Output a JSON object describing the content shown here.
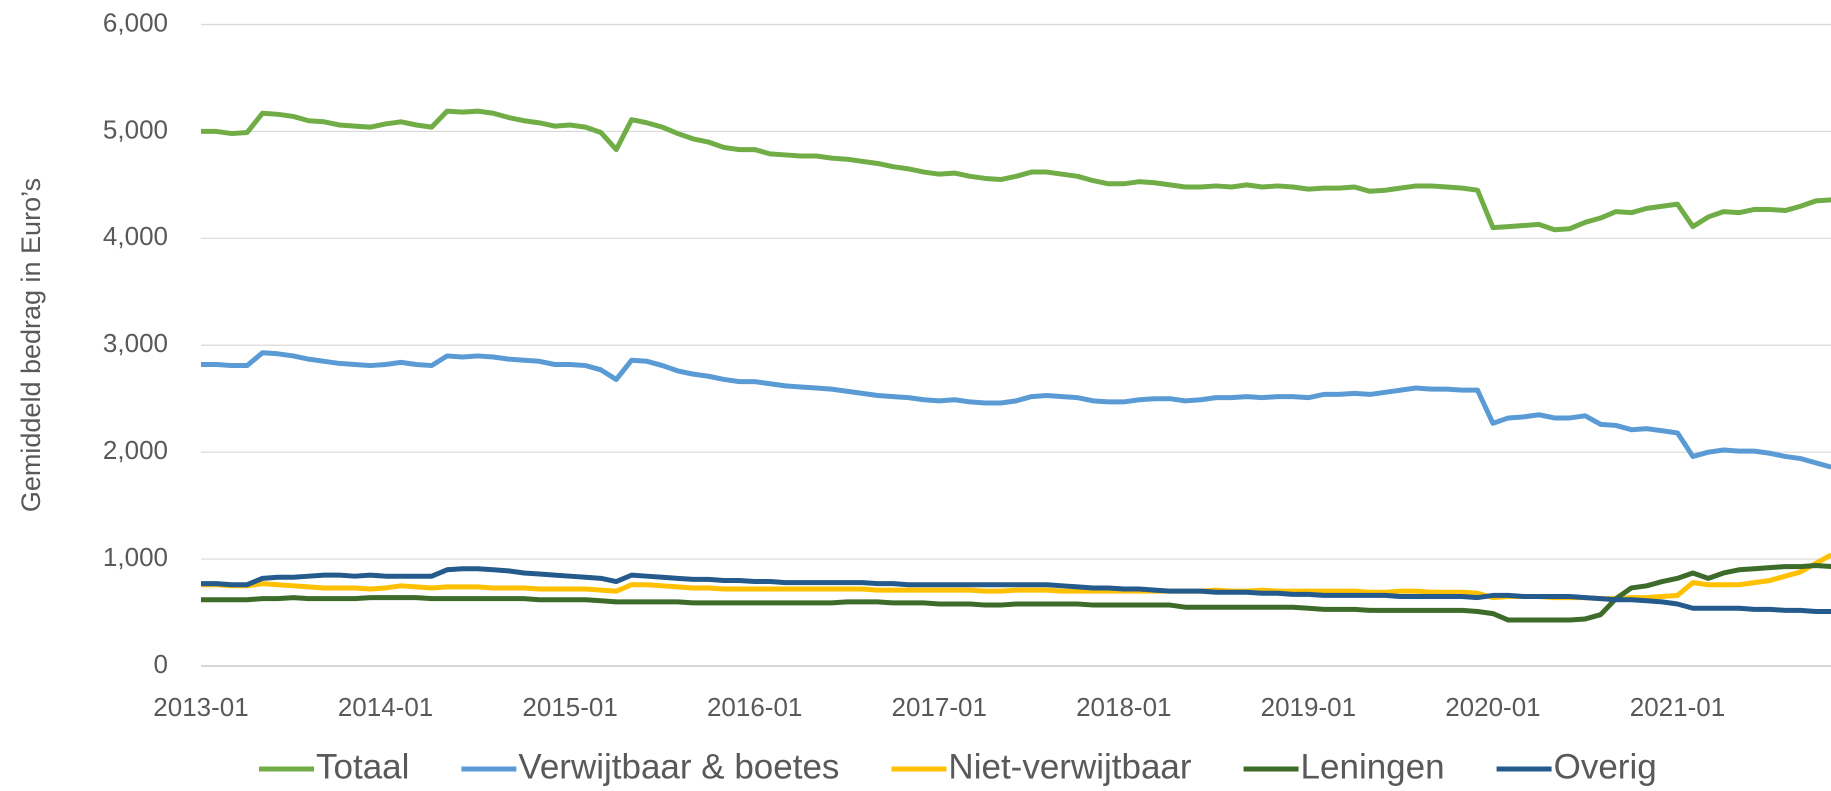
{
  "chart_data": {
    "type": "line",
    "y_label": "Gemiddeld bedrag in Euro’s",
    "categories": [
      "2013-01",
      null,
      null,
      null,
      null,
      null,
      null,
      null,
      null,
      null,
      null,
      null,
      "2014-01",
      null,
      null,
      null,
      null,
      null,
      null,
      null,
      null,
      null,
      null,
      null,
      "2015-01",
      null,
      null,
      null,
      null,
      null,
      null,
      null,
      null,
      null,
      null,
      null,
      "2016-01",
      null,
      null,
      null,
      null,
      null,
      null,
      null,
      null,
      null,
      null,
      null,
      "2017-01",
      null,
      null,
      null,
      null,
      null,
      null,
      null,
      null,
      null,
      null,
      null,
      "2018-01",
      null,
      null,
      null,
      null,
      null,
      null,
      null,
      null,
      null,
      null,
      null,
      "2019-01",
      null,
      null,
      null,
      null,
      null,
      null,
      null,
      null,
      null,
      null,
      null,
      "2020-01",
      null,
      null,
      null,
      null,
      null,
      null,
      null,
      null,
      null,
      null,
      null,
      "2021-01",
      null,
      null,
      null,
      null,
      null,
      null,
      null,
      null,
      null,
      null
    ],
    "series": [
      {
        "name": "Totaal",
        "color": "#70ad47",
        "values": [
          5000,
          5000,
          4980,
          4990,
          5170,
          5160,
          5140,
          5100,
          5090,
          5060,
          5050,
          5040,
          5070,
          5090,
          5060,
          5040,
          5190,
          5180,
          5190,
          5170,
          5130,
          5100,
          5080,
          5050,
          5060,
          5040,
          4990,
          4830,
          5110,
          5080,
          5040,
          4980,
          4930,
          4900,
          4850,
          4830,
          4830,
          4790,
          4780,
          4770,
          4770,
          4750,
          4740,
          4720,
          4700,
          4670,
          4650,
          4620,
          4600,
          4610,
          4580,
          4560,
          4550,
          4580,
          4620,
          4620,
          4600,
          4580,
          4540,
          4510,
          4510,
          4530,
          4520,
          4500,
          4480,
          4480,
          4490,
          4480,
          4500,
          4480,
          4490,
          4480,
          4460,
          4470,
          4470,
          4480,
          4440,
          4450,
          4470,
          4490,
          4490,
          4480,
          4470,
          4450,
          4100,
          4110,
          4120,
          4130,
          4080,
          4090,
          4150,
          4190,
          4250,
          4240,
          4280,
          4300,
          4320,
          4110,
          4200,
          4250,
          4240,
          4270,
          4270,
          4260,
          4300,
          4350,
          4360
        ]
      },
      {
        "name": "Verwijtbaar & boetes",
        "color": "#5b9bd5",
        "values": [
          2820,
          2820,
          2810,
          2810,
          2930,
          2920,
          2900,
          2870,
          2850,
          2830,
          2820,
          2810,
          2820,
          2840,
          2820,
          2810,
          2900,
          2890,
          2900,
          2890,
          2870,
          2860,
          2850,
          2820,
          2820,
          2810,
          2770,
          2680,
          2860,
          2850,
          2810,
          2760,
          2730,
          2710,
          2680,
          2660,
          2660,
          2640,
          2620,
          2610,
          2600,
          2590,
          2570,
          2550,
          2530,
          2520,
          2510,
          2490,
          2480,
          2490,
          2470,
          2460,
          2460,
          2480,
          2520,
          2530,
          2520,
          2510,
          2480,
          2470,
          2470,
          2490,
          2500,
          2500,
          2480,
          2490,
          2510,
          2510,
          2520,
          2510,
          2520,
          2520,
          2510,
          2540,
          2540,
          2550,
          2540,
          2560,
          2580,
          2600,
          2590,
          2590,
          2580,
          2580,
          2270,
          2320,
          2330,
          2350,
          2320,
          2320,
          2340,
          2260,
          2250,
          2210,
          2220,
          2200,
          2180,
          1960,
          2000,
          2020,
          2010,
          2010,
          1990,
          1960,
          1940,
          1900,
          1860
        ]
      },
      {
        "name": "Niet-verwijtbaar",
        "color": "#ffc000",
        "values": [
          760,
          760,
          750,
          750,
          770,
          760,
          750,
          740,
          730,
          730,
          730,
          720,
          730,
          750,
          740,
          730,
          740,
          740,
          740,
          730,
          730,
          730,
          720,
          720,
          720,
          720,
          710,
          700,
          760,
          760,
          750,
          740,
          730,
          730,
          720,
          720,
          720,
          720,
          720,
          720,
          720,
          720,
          720,
          720,
          710,
          710,
          710,
          710,
          710,
          710,
          710,
          700,
          700,
          710,
          710,
          710,
          700,
          700,
          700,
          700,
          700,
          700,
          700,
          700,
          700,
          700,
          710,
          700,
          700,
          710,
          700,
          700,
          700,
          700,
          700,
          700,
          690,
          690,
          700,
          700,
          690,
          690,
          690,
          680,
          640,
          650,
          650,
          650,
          640,
          640,
          640,
          630,
          630,
          640,
          640,
          650,
          660,
          780,
          760,
          760,
          760,
          780,
          800,
          840,
          880,
          960,
          1040
        ]
      },
      {
        "name": "Leningen",
        "color": "#3d6b29",
        "values": [
          620,
          620,
          620,
          620,
          630,
          630,
          640,
          630,
          630,
          630,
          630,
          640,
          640,
          640,
          640,
          630,
          630,
          630,
          630,
          630,
          630,
          630,
          620,
          620,
          620,
          620,
          610,
          600,
          600,
          600,
          600,
          600,
          590,
          590,
          590,
          590,
          590,
          590,
          590,
          590,
          590,
          590,
          600,
          600,
          600,
          590,
          590,
          590,
          580,
          580,
          580,
          570,
          570,
          580,
          580,
          580,
          580,
          580,
          570,
          570,
          570,
          570,
          570,
          570,
          550,
          550,
          550,
          550,
          550,
          550,
          550,
          550,
          540,
          530,
          530,
          530,
          520,
          520,
          520,
          520,
          520,
          520,
          520,
          510,
          490,
          430,
          430,
          430,
          430,
          430,
          440,
          480,
          630,
          730,
          750,
          790,
          820,
          870,
          820,
          870,
          900,
          910,
          920,
          930,
          930,
          940,
          930
        ]
      },
      {
        "name": "Overig",
        "color": "#245a8c",
        "values": [
          770,
          770,
          760,
          760,
          820,
          830,
          830,
          840,
          850,
          850,
          840,
          850,
          840,
          840,
          840,
          840,
          900,
          910,
          910,
          900,
          890,
          870,
          860,
          850,
          840,
          830,
          820,
          790,
          850,
          840,
          830,
          820,
          810,
          810,
          800,
          800,
          790,
          790,
          780,
          780,
          780,
          780,
          780,
          780,
          770,
          770,
          760,
          760,
          760,
          760,
          760,
          760,
          760,
          760,
          760,
          760,
          750,
          740,
          730,
          730,
          720,
          720,
          710,
          700,
          700,
          700,
          690,
          690,
          690,
          680,
          680,
          670,
          670,
          660,
          660,
          660,
          660,
          660,
          650,
          650,
          650,
          650,
          650,
          640,
          660,
          660,
          650,
          650,
          650,
          650,
          640,
          630,
          620,
          620,
          610,
          600,
          580,
          540,
          540,
          540,
          540,
          530,
          530,
          520,
          520,
          510,
          510
        ]
      }
    ],
    "ylim": [
      0,
      6000
    ],
    "yticks": [
      0,
      {
        "value": 1000,
        "label": "1,000"
      },
      {
        "value": 2000,
        "label": "2,000"
      },
      {
        "value": 3000,
        "label": "3,000"
      },
      {
        "value": 4000,
        "label": "4,000"
      },
      {
        "value": 5000,
        "label": "5,000"
      },
      {
        "value": 6000,
        "label": "6,000"
      }
    ],
    "grid": true,
    "legend": "bottom"
  }
}
